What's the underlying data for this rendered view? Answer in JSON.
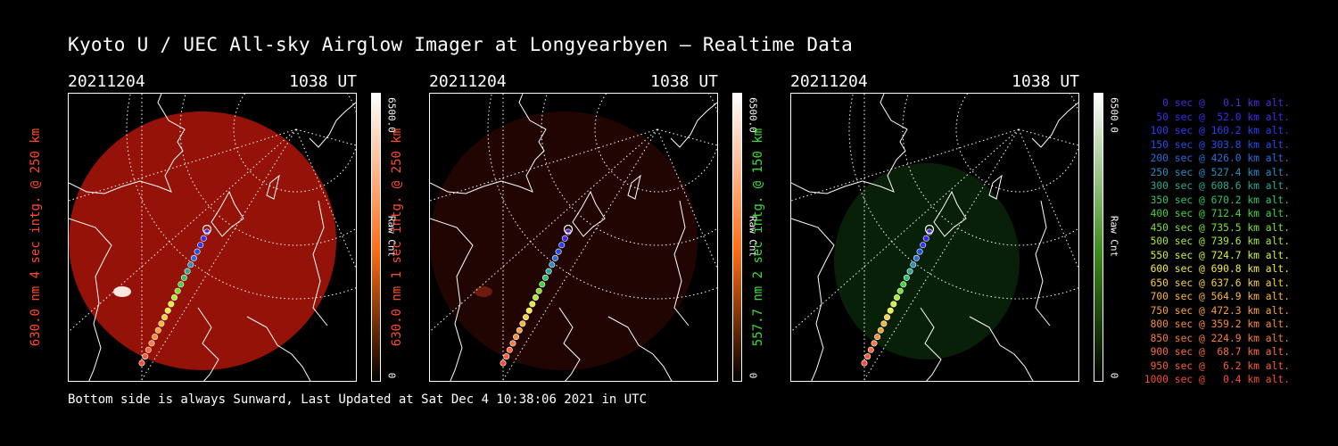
{
  "title": "Kyoto U / UEC All-sky Airglow Imager at Longyearbyen — Realtime Data",
  "footer": "Bottom side is always Sunward, Last Updated at Sat Dec  4 10:38:06 2021 in UTC",
  "panels": [
    {
      "date": "20211204",
      "time": "1038 UT",
      "side_label": "630.0 nm 4 sec intg. @ 250 km",
      "side_color": "#ff4a2a",
      "cb_max": "6500.0",
      "cb_min": "0",
      "cb_unit": "Raw Cnt",
      "cb_color": "#ff6a14",
      "sky_color": "#d41a0c",
      "sky_brightness": 0.7,
      "has_glow": true
    },
    {
      "date": "20211204",
      "time": "1038 UT",
      "side_label": "630.0 nm 1 sec intg. @ 250 km",
      "side_color": "#ff4a2a",
      "cb_max": "6500.0",
      "cb_min": "0",
      "cb_unit": "Raw Cnt",
      "cb_color": "#ff6a14",
      "sky_color": "#4a0c06",
      "sky_brightness": 0.45,
      "has_glow": true
    },
    {
      "date": "20211204",
      "time": "1038 UT",
      "side_label": "557.7 nm 2 sec intg. @ 150 km",
      "side_color": "#3cdc3c",
      "cb_max": "6500.0",
      "cb_min": "0",
      "cb_unit": "Raw Cnt",
      "cb_color": "#3c8c1a",
      "sky_color": "#0f3a0f",
      "sky_brightness": 0.55,
      "has_glow": false
    }
  ],
  "legend": [
    {
      "text": "0 sec @   0.1 km alt.",
      "color": "#4b2bdc"
    },
    {
      "text": "50 sec @  52.0 km alt.",
      "color": "#3c2cf0"
    },
    {
      "text": "100 sec @ 160.2 km alt.",
      "color": "#2a3cf0"
    },
    {
      "text": "150 sec @ 303.8 km alt.",
      "color": "#2050e8"
    },
    {
      "text": "200 sec @ 426.0 km alt.",
      "color": "#2a6ce0"
    },
    {
      "text": "250 sec @ 527.4 km alt.",
      "color": "#2c8cc4"
    },
    {
      "text": "300 sec @ 608.6 km alt.",
      "color": "#2aa890"
    },
    {
      "text": "350 sec @ 670.2 km alt.",
      "color": "#2cc46a"
    },
    {
      "text": "400 sec @ 712.4 km alt.",
      "color": "#44d43c"
    },
    {
      "text": "450 sec @ 735.5 km alt.",
      "color": "#7ce032"
    },
    {
      "text": "500 sec @ 739.6 km alt.",
      "color": "#a8ec32"
    },
    {
      "text": "550 sec @ 724.7 km alt.",
      "color": "#d4f03a"
    },
    {
      "text": "600 sec @ 690.8 km alt.",
      "color": "#f4ec3c"
    },
    {
      "text": "650 sec @ 637.6 km alt.",
      "color": "#f8d03c"
    },
    {
      "text": "700 sec @ 564.9 km alt.",
      "color": "#f8b43a"
    },
    {
      "text": "750 sec @ 472.3 km alt.",
      "color": "#f8a03a"
    },
    {
      "text": "800 sec @ 359.2 km alt.",
      "color": "#f88c3c"
    },
    {
      "text": "850 sec @ 224.9 km alt.",
      "color": "#f87c3c"
    },
    {
      "text": "900 sec @  68.7 km alt.",
      "color": "#f86c3c"
    },
    {
      "text": "950 sec @   6.2 km alt.",
      "color": "#f85c3a"
    },
    {
      "text": "1000 sec @   0.4 km alt.",
      "color": "#f84c34"
    }
  ]
}
